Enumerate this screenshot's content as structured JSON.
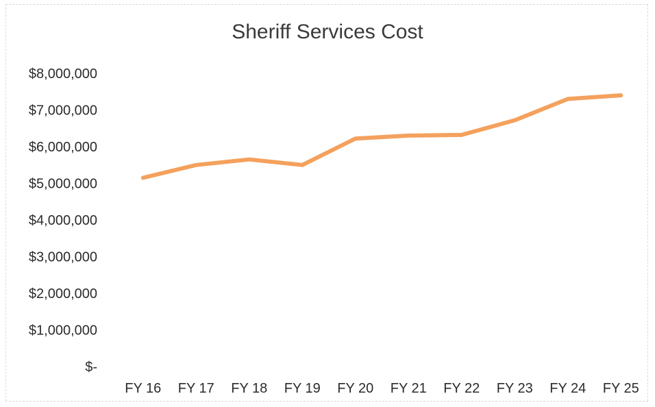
{
  "chart_data": {
    "type": "line",
    "title": "Sheriff Services Cost",
    "xlabel": "",
    "ylabel": "",
    "categories": [
      "FY 16",
      "FY 17",
      "FY 18",
      "FY 19",
      "FY 20",
      "FY 21",
      "FY 22",
      "FY 23",
      "FY 24",
      "FY 25"
    ],
    "series": [
      {
        "values": [
          5150000,
          5500000,
          5650000,
          5500000,
          6220000,
          6300000,
          6320000,
          6720000,
          7300000,
          7400000
        ],
        "color": "#f4a15d"
      }
    ],
    "y_tick_labels": [
      "$8,000,000",
      "$7,000,000",
      "$6,000,000",
      "$5,000,000",
      "$4,000,000",
      "$3,000,000",
      "$2,000,000",
      "$1,000,000",
      "$-"
    ],
    "y_tick_values": [
      8000000,
      7000000,
      6000000,
      5000000,
      4000000,
      3000000,
      2000000,
      1000000,
      0
    ],
    "ylim": [
      0,
      8000000
    ],
    "grid": false,
    "legend": "none"
  }
}
